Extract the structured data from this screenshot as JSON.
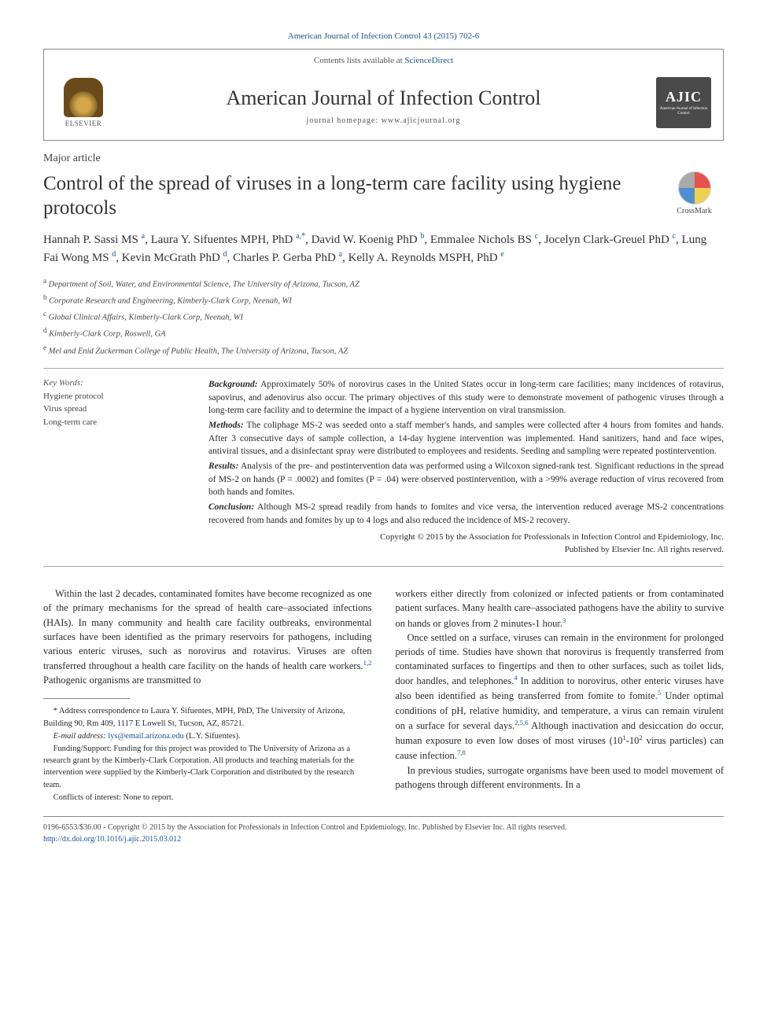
{
  "header": {
    "citation_line": "American Journal of Infection Control 43 (2015) 702-6",
    "contents_text": "Contents lists available at ",
    "contents_link": "ScienceDirect",
    "journal_name": "American Journal of Infection Control",
    "homepage_label": "journal homepage: ",
    "homepage_url": "www.ajicjournal.org",
    "elsevier_label": "ELSEVIER",
    "ajic_label": "AJIC",
    "ajic_sub": "American Journal of Infection Control",
    "crossmark_label": "CrossMark"
  },
  "article": {
    "type": "Major article",
    "title": "Control of the spread of viruses in a long-term care facility using hygiene protocols",
    "authors_html": "Hannah P. Sassi MS <sup>a</sup>, Laura Y. Sifuentes MPH, PhD <sup>a,*</sup>, David W. Koenig PhD <sup>b</sup>, Emmalee Nichols BS <sup>c</sup>, Jocelyn Clark-Greuel PhD <sup>c</sup>, Lung Fai Wong MS <sup>d</sup>, Kevin McGrath PhD <sup>d</sup>, Charles P. Gerba PhD <sup>a</sup>, Kelly A. Reynolds MSPH, PhD <sup>e</sup>",
    "affiliations": [
      {
        "sup": "a",
        "text": "Department of Soil, Water, and Environmental Science, The University of Arizona, Tucson, AZ"
      },
      {
        "sup": "b",
        "text": "Corporate Research and Engineering, Kimberly-Clark Corp, Neenah, WI"
      },
      {
        "sup": "c",
        "text": "Global Clinical Affairs, Kimberly-Clark Corp, Neenah, WI"
      },
      {
        "sup": "d",
        "text": "Kimberly-Clark Corp, Roswell, GA"
      },
      {
        "sup": "e",
        "text": "Mel and Enid Zuckerman College of Public Health, The University of Arizona, Tucson, AZ"
      }
    ]
  },
  "keywords": {
    "label": "Key Words:",
    "items": [
      "Hygiene protocol",
      "Virus spread",
      "Long-term care"
    ]
  },
  "abstract": {
    "background_label": "Background:",
    "background": " Approximately 50% of norovirus cases in the United States occur in long-term care facilities; many incidences of rotavirus, sapovirus, and adenovirus also occur. The primary objectives of this study were to demonstrate movement of pathogenic viruses through a long-term care facility and to determine the impact of a hygiene intervention on viral transmission.",
    "methods_label": "Methods:",
    "methods": " The coliphage MS-2 was seeded onto a staff member's hands, and samples were collected after 4 hours from fomites and hands. After 3 consecutive days of sample collection, a 14-day hygiene intervention was implemented. Hand sanitizers, hand and face wipes, antiviral tissues, and a disinfectant spray were distributed to employees and residents. Seeding and sampling were repeated postintervention.",
    "results_label": "Results:",
    "results": " Analysis of the pre- and postintervention data was performed using a Wilcoxon signed-rank test. Significant reductions in the spread of MS-2 on hands (P = .0002) and fomites (P = .04) were observed postintervention, with a >99% average reduction of virus recovered from both hands and fomites.",
    "conclusion_label": "Conclusion:",
    "conclusion": " Although MS-2 spread readily from hands to fomites and vice versa, the intervention reduced average MS-2 concentrations recovered from hands and fomites by up to 4 logs and also reduced the incidence of MS-2 recovery.",
    "copyright1": "Copyright © 2015 by the Association for Professionals in Infection Control and Epidemiology, Inc.",
    "copyright2": "Published by Elsevier Inc. All rights reserved."
  },
  "body": {
    "left_p1": "Within the last 2 decades, contaminated fomites have become recognized as one of the primary mechanisms for the spread of health care–associated infections (HAIs). In many community and health care facility outbreaks, environmental surfaces have been identified as the primary reservoirs for pathogens, including various enteric viruses, such as norovirus and rotavirus. Viruses are often transferred throughout a health care facility on the hands of health care workers.",
    "left_ref1": "1,2",
    "left_p1_tail": " Pathogenic organisms are transmitted to",
    "right_p1": "workers either directly from colonized or infected patients or from contaminated patient surfaces. Many health care–associated pathogens have the ability to survive on hands or gloves from 2 minutes-1 hour.",
    "right_ref1": "3",
    "right_p2": "Once settled on a surface, viruses can remain in the environment for prolonged periods of time. Studies have shown that norovirus is frequently transferred from contaminated surfaces to fingertips and then to other surfaces, such as toilet lids, door handles, and telephones.",
    "right_ref2": "4",
    "right_p2_tail": " In addition to norovirus, other enteric viruses have also been identified as being transferred from fomite to fomite.",
    "right_ref3": "5",
    "right_p2_tail2": " Under optimal conditions of pH, relative humidity, and temperature, a virus can remain virulent on a surface for several days.",
    "right_ref4": "2,5,6",
    "right_p2_tail3": " Although inactivation and desiccation do occur, human exposure to even low doses of most viruses (10",
    "right_sup1": "1",
    "right_dash": "-10",
    "right_sup2": "2",
    "right_p2_tail4": " virus particles) can cause infection.",
    "right_ref5": "7,8",
    "right_p3": "In previous studies, surrogate organisms have been used to model movement of pathogens through different environments. In a"
  },
  "footnotes": {
    "correspondence": "* Address correspondence to Laura Y. Sifuentes, MPH, PhD, The University of Arizona, Building 90, Rm 409, 1117 E Lowell St, Tucson, AZ, 85721.",
    "email_label": "E-mail address: ",
    "email": "lys@email.arizona.edu",
    "email_tail": " (L.Y. Sifuentes).",
    "funding": "Funding/Support: Funding for this project was provided to The University of Arizona as a research grant by the Kimberly-Clark Corporation. All products and teaching materials for the intervention were supplied by the Kimberly-Clark Corporation and distributed by the research team.",
    "conflicts": "Conflicts of interest: None to report."
  },
  "bottom": {
    "line1": "0196-6553/$36.00 - Copyright © 2015 by the Association for Professionals in Infection Control and Epidemiology, Inc. Published by Elsevier Inc. All rights reserved.",
    "doi": "http://dx.doi.org/10.1016/j.ajic.2015.03.012"
  },
  "colors": {
    "link": "#1a5490",
    "text": "#2a2a2a",
    "rule": "#888888"
  }
}
